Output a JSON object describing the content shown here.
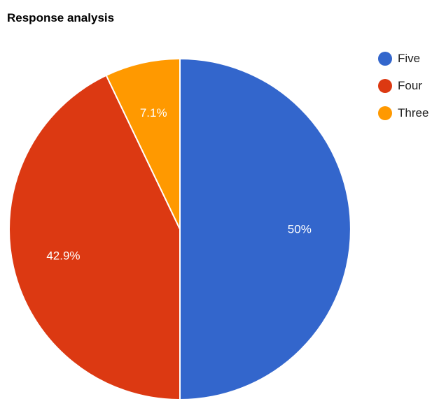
{
  "chart_data": {
    "type": "pie",
    "title": "Response analysis",
    "slices": [
      {
        "label": "Five",
        "value": 50,
        "value_label": "50%",
        "color": "#3366cc"
      },
      {
        "label": "Four",
        "value": 42.9,
        "value_label": "42.9%",
        "color": "#dc3912"
      },
      {
        "label": "Three",
        "value": 7.1,
        "value_label": "7.1%",
        "color": "#ff9900"
      }
    ],
    "legend_position": "right",
    "start_angle": "top",
    "direction": "clockwise"
  }
}
